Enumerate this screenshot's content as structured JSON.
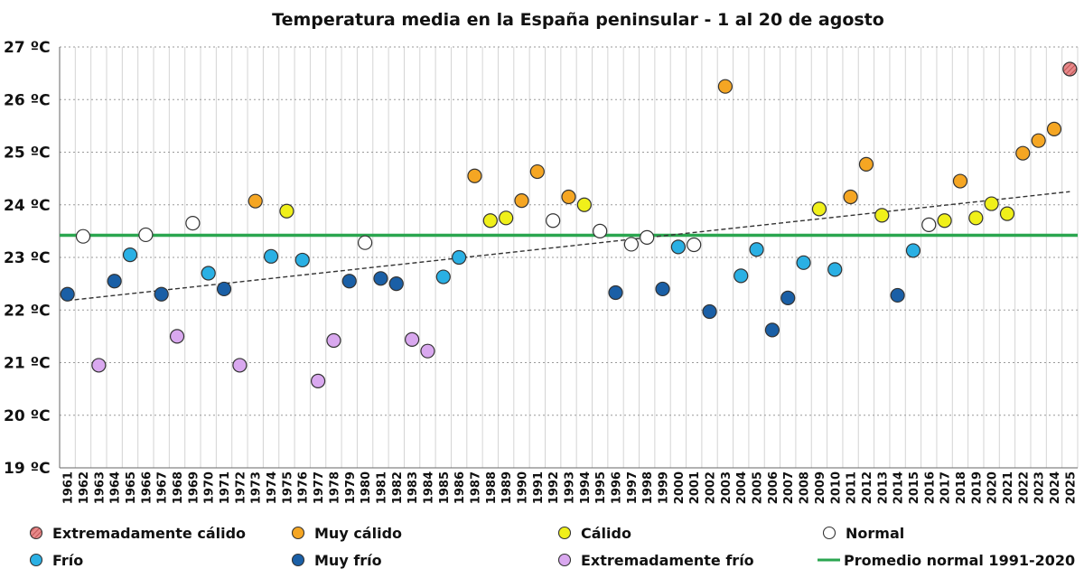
{
  "chart_data": {
    "type": "scatter",
    "title": "Temperatura media en la España peninsular - 1 al 20 de agosto",
    "xlabel": "",
    "ylabel": "",
    "ylim": [
      19,
      27
    ],
    "y_ticks": [
      19,
      20,
      21,
      22,
      23,
      24,
      25,
      26,
      27
    ],
    "y_tick_labels": [
      "19 ºC",
      "20 ºC",
      "21 ºC",
      "22 ºC",
      "23 ºC",
      "24 ºC",
      "25 ºC",
      "26 ºC",
      "27 ºC"
    ],
    "grid": true,
    "categories_order": [
      "EC",
      "MC",
      "C",
      "N",
      "F",
      "MF",
      "EF"
    ],
    "category_styles": {
      "EC": {
        "label": "Extremadamente cálido",
        "color": "#e8898a",
        "hatch": true
      },
      "MC": {
        "label": "Muy cálido",
        "color": "#f5a623"
      },
      "C": {
        "label": "Cálido",
        "color": "#f0f01a"
      },
      "N": {
        "label": "Normal",
        "color": "#ffffff"
      },
      "F": {
        "label": "Frío",
        "color": "#2ab0e4"
      },
      "MF": {
        "label": "Muy frío",
        "color": "#1a5fa6"
      },
      "EF": {
        "label": "Extremadamente frío",
        "color": "#d9a8ef"
      }
    },
    "points": [
      {
        "year": "1961",
        "value": 22.3,
        "cat": "MF"
      },
      {
        "year": "1962",
        "value": 23.4,
        "cat": "N"
      },
      {
        "year": "1963",
        "value": 20.95,
        "cat": "EF"
      },
      {
        "year": "1964",
        "value": 22.55,
        "cat": "MF"
      },
      {
        "year": "1965",
        "value": 23.05,
        "cat": "F"
      },
      {
        "year": "1966",
        "value": 23.43,
        "cat": "N"
      },
      {
        "year": "1967",
        "value": 22.3,
        "cat": "MF"
      },
      {
        "year": "1968",
        "value": 21.5,
        "cat": "EF"
      },
      {
        "year": "1969",
        "value": 23.65,
        "cat": "N"
      },
      {
        "year": "1970",
        "value": 22.7,
        "cat": "F"
      },
      {
        "year": "1971",
        "value": 22.4,
        "cat": "MF"
      },
      {
        "year": "1972",
        "value": 20.95,
        "cat": "EF"
      },
      {
        "year": "1973",
        "value": 24.07,
        "cat": "MC"
      },
      {
        "year": "1974",
        "value": 23.02,
        "cat": "F"
      },
      {
        "year": "1975",
        "value": 23.88,
        "cat": "C"
      },
      {
        "year": "1976",
        "value": 22.95,
        "cat": "F"
      },
      {
        "year": "1977",
        "value": 20.65,
        "cat": "EF"
      },
      {
        "year": "1978",
        "value": 21.42,
        "cat": "EF"
      },
      {
        "year": "1979",
        "value": 22.55,
        "cat": "MF"
      },
      {
        "year": "1980",
        "value": 23.28,
        "cat": "N"
      },
      {
        "year": "1981",
        "value": 22.6,
        "cat": "MF"
      },
      {
        "year": "1982",
        "value": 22.5,
        "cat": "MF"
      },
      {
        "year": "1983",
        "value": 21.44,
        "cat": "EF"
      },
      {
        "year": "1984",
        "value": 21.22,
        "cat": "EF"
      },
      {
        "year": "1985",
        "value": 22.63,
        "cat": "F"
      },
      {
        "year": "1986",
        "value": 23.0,
        "cat": "F"
      },
      {
        "year": "1987",
        "value": 24.55,
        "cat": "MC"
      },
      {
        "year": "1988",
        "value": 23.7,
        "cat": "C"
      },
      {
        "year": "1989",
        "value": 23.75,
        "cat": "C"
      },
      {
        "year": "1990",
        "value": 24.08,
        "cat": "MC"
      },
      {
        "year": "1991",
        "value": 24.63,
        "cat": "MC"
      },
      {
        "year": "1992",
        "value": 23.7,
        "cat": "N"
      },
      {
        "year": "1993",
        "value": 24.15,
        "cat": "MC"
      },
      {
        "year": "1994",
        "value": 24.0,
        "cat": "C"
      },
      {
        "year": "1995",
        "value": 23.5,
        "cat": "N"
      },
      {
        "year": "1996",
        "value": 22.33,
        "cat": "MF"
      },
      {
        "year": "1997",
        "value": 23.25,
        "cat": "N"
      },
      {
        "year": "1998",
        "value": 23.38,
        "cat": "N"
      },
      {
        "year": "1999",
        "value": 22.4,
        "cat": "MF"
      },
      {
        "year": "2000",
        "value": 23.2,
        "cat": "F"
      },
      {
        "year": "2001",
        "value": 23.24,
        "cat": "N"
      },
      {
        "year": "2002",
        "value": 21.97,
        "cat": "MF"
      },
      {
        "year": "2003",
        "value": 26.25,
        "cat": "MC"
      },
      {
        "year": "2004",
        "value": 22.65,
        "cat": "F"
      },
      {
        "year": "2005",
        "value": 23.15,
        "cat": "F"
      },
      {
        "year": "2006",
        "value": 21.62,
        "cat": "MF"
      },
      {
        "year": "2007",
        "value": 22.23,
        "cat": "MF"
      },
      {
        "year": "2008",
        "value": 22.9,
        "cat": "F"
      },
      {
        "year": "2009",
        "value": 23.92,
        "cat": "C"
      },
      {
        "year": "2010",
        "value": 22.77,
        "cat": "F"
      },
      {
        "year": "2011",
        "value": 24.15,
        "cat": "MC"
      },
      {
        "year": "2012",
        "value": 24.77,
        "cat": "MC"
      },
      {
        "year": "2013",
        "value": 23.8,
        "cat": "C"
      },
      {
        "year": "2014",
        "value": 22.28,
        "cat": "MF"
      },
      {
        "year": "2015",
        "value": 23.13,
        "cat": "F"
      },
      {
        "year": "2016",
        "value": 23.62,
        "cat": "N"
      },
      {
        "year": "2017",
        "value": 23.7,
        "cat": "C"
      },
      {
        "year": "2018",
        "value": 24.45,
        "cat": "MC"
      },
      {
        "year": "2019",
        "value": 23.75,
        "cat": "C"
      },
      {
        "year": "2020",
        "value": 24.02,
        "cat": "C"
      },
      {
        "year": "2021",
        "value": 23.83,
        "cat": "C"
      },
      {
        "year": "2022",
        "value": 24.98,
        "cat": "MC"
      },
      {
        "year": "2023",
        "value": 25.22,
        "cat": "MC"
      },
      {
        "year": "2024",
        "value": 25.44,
        "cat": "MC"
      },
      {
        "year": "2025",
        "value": 26.58,
        "cat": "EC"
      }
    ],
    "normal_line": {
      "label": "Promedio normal 1991-2020",
      "value": 23.42,
      "color": "#2aa64f"
    },
    "trend_line": {
      "start_value": 22.18,
      "end_value": 24.25,
      "color": "#333333"
    },
    "legend": {
      "placement": "bottom",
      "items": [
        {
          "label": "Extremadamente cálido",
          "cat": "EC"
        },
        {
          "label": "Muy cálido",
          "cat": "MC"
        },
        {
          "label": "Cálido",
          "cat": "C"
        },
        {
          "label": "Normal",
          "cat": "N"
        },
        {
          "label": "Frío",
          "cat": "F"
        },
        {
          "label": "Muy frío",
          "cat": "MF"
        },
        {
          "label": "Extremadamente frío",
          "cat": "EF"
        },
        {
          "label": "Promedio normal 1991-2020",
          "line": true
        }
      ]
    }
  }
}
